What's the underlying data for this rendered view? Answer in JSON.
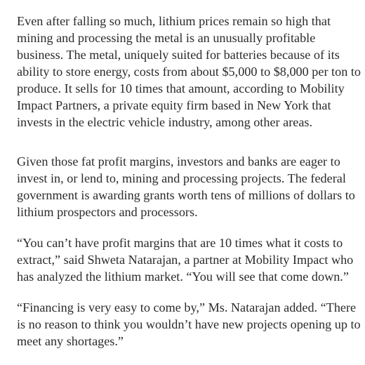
{
  "article": {
    "paragraphs": [
      {
        "lines": [
          "Even after falling so much, lithium prices remain so high that",
          "mining and processing the metal is an unusually profitable",
          "business. The metal, uniquely suited for batteries because of its",
          "ability to store energy, costs from about $5,000 to $8,000 per ton to",
          "produce. It sells for 10 times that amount, according to Mobility",
          "Impact Partners, a private equity firm based in New York that",
          "invests in the electric vehicle industry, among other areas."
        ]
      },
      {
        "lines": [
          "Given those fat profit margins, investors and banks are eager to",
          "invest in, or lend to, mining and processing projects. The federal",
          "government is awarding grants worth tens of millions of dollars to",
          "lithium prospectors and processors."
        ]
      },
      {
        "lines": [
          "“You can’t have profit margins that are 10 times what it costs to",
          "extract,” said Shweta Natarajan, a partner at Mobility Impact who",
          "has analyzed the lithium market. “You will see that come down.”"
        ]
      },
      {
        "lines": [
          "“Financing is very easy to come by,” Ms. Natarajan added. “There",
          "is no reason to think you wouldn’t have new projects opening up to",
          "meet any shortages.”"
        ]
      }
    ]
  }
}
